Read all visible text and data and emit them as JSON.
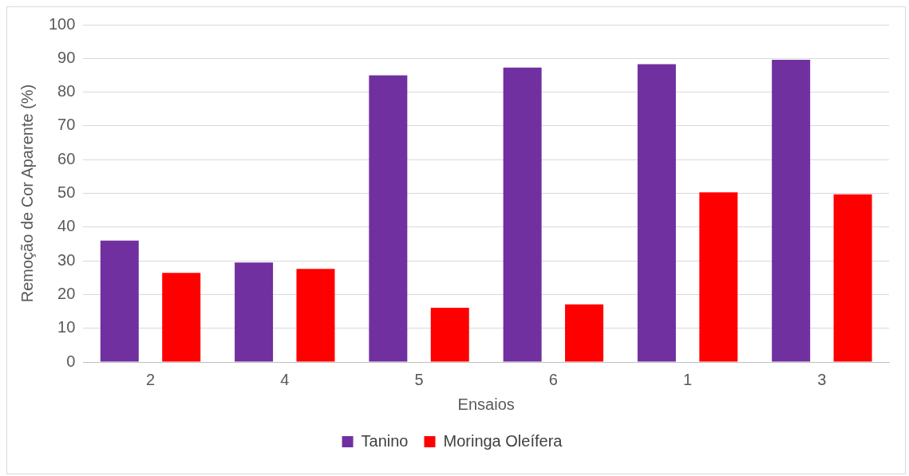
{
  "chart_data": {
    "type": "bar",
    "xlabel": "Ensaios",
    "ylabel": "Remoção de Cor Aparente (%)",
    "categories": [
      "2",
      "4",
      "5",
      "6",
      "1",
      "3"
    ],
    "series": [
      {
        "name": "Tanino",
        "color": "#7030a0",
        "values": [
          36.0,
          29.5,
          85.0,
          87.3,
          88.3,
          89.6
        ]
      },
      {
        "name": "Moringa Oleífera",
        "color": "#ff0000",
        "values": [
          26.4,
          27.6,
          16.1,
          17.1,
          50.3,
          49.7
        ]
      }
    ],
    "ylim": [
      0,
      100
    ],
    "yticks": [
      0,
      10,
      20,
      30,
      40,
      50,
      60,
      70,
      80,
      90,
      100
    ],
    "grid": "y",
    "legend": "bottom"
  }
}
